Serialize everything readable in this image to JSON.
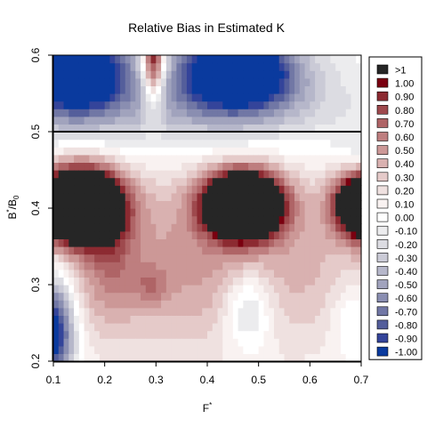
{
  "chart_data": {
    "type": "heatmap",
    "title": "Relative Bias in Estimated K",
    "xlabel_main": "F",
    "xlabel_sup": "*",
    "ylabel_main": "B",
    "ylabel_sup": "*",
    "ylabel_slash": "/B",
    "ylabel_sub": "0",
    "xlim": [
      0.1,
      0.7
    ],
    "ylim": [
      0.2,
      0.6
    ],
    "x_ticks": [
      0.1,
      0.2,
      0.3,
      0.4,
      0.5,
      0.6,
      0.7
    ],
    "x_tick_labels": [
      "0.1",
      "0.2",
      "0.3",
      "0.4",
      "0.5",
      "0.6",
      "0.7"
    ],
    "y_ticks": [
      0.2,
      0.3,
      0.4,
      0.5,
      0.6
    ],
    "y_tick_labels": [
      "0.2",
      "0.3",
      "0.4",
      "0.5",
      "0.6"
    ],
    "reference_line_y": 0.5,
    "legend_position": "right",
    "legend": [
      {
        "label": ">1",
        "color": "#262626"
      },
      {
        "label": "1.00",
        "color": "#7a0010"
      },
      {
        "label": "0.90",
        "color": "#8c2a31"
      },
      {
        "label": "0.80",
        "color": "#9e494d"
      },
      {
        "label": "0.70",
        "color": "#af6466"
      },
      {
        "label": "0.60",
        "color": "#be7e7f"
      },
      {
        "label": "0.50",
        "color": "#cc9897"
      },
      {
        "label": "0.40",
        "color": "#d9b1b0"
      },
      {
        "label": "0.30",
        "color": "#e5cac9"
      },
      {
        "label": "0.20",
        "color": "#efe1e0"
      },
      {
        "label": "0.10",
        "color": "#f9f2f1"
      },
      {
        "label": "0.00",
        "color": "#ffffff"
      },
      {
        "label": "-0.10",
        "color": "#ececee"
      },
      {
        "label": "-0.20",
        "color": "#dcdce2"
      },
      {
        "label": "-0.30",
        "color": "#cacad6"
      },
      {
        "label": "-0.40",
        "color": "#b6b7ca"
      },
      {
        "label": "-0.50",
        "color": "#a1a3bd"
      },
      {
        "label": "-0.60",
        "color": "#8a8eb1"
      },
      {
        "label": "-0.70",
        "color": "#7177a5"
      },
      {
        "label": "-0.80",
        "color": "#545e9b"
      },
      {
        "label": "-0.90",
        "color": "#34449a"
      },
      {
        "label": "-1.00",
        "color": "#0a3a9e"
      }
    ]
  }
}
